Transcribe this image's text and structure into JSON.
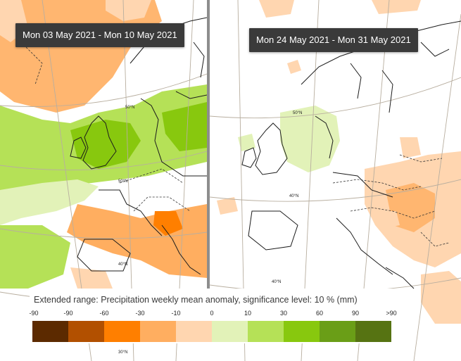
{
  "panels": [
    {
      "date_range": "Mon 03 May 2021 - Mon 10 May 2021"
    },
    {
      "date_range": "Mon 24 May 2021 - Mon 31 May 2021"
    }
  ],
  "legend": {
    "title": "Extended range: Precipitation weekly mean anomaly, significance level: 10 % (mm)",
    "ticks": [
      "-90",
      "-90",
      "-60",
      "-30",
      "-10",
      "0",
      "10",
      "30",
      "60",
      "90",
      ">90"
    ],
    "colors": [
      "#5c2a00",
      "#b25000",
      "#ff7f00",
      "#ffae60",
      "#ffd6b0",
      "#e2f2b8",
      "#b5e157",
      "#88c80e",
      "#6a9e17",
      "#567312"
    ]
  },
  "map_labels": {
    "left": [
      "50°N",
      "50°N",
      "40°N",
      "30°N"
    ],
    "right": [
      "50°N",
      "40°N",
      "40°N"
    ]
  },
  "colors": {
    "land_border": "#1c1c1c",
    "graticule": "#b8ae9f",
    "label_bg": "#3a3a3a"
  }
}
